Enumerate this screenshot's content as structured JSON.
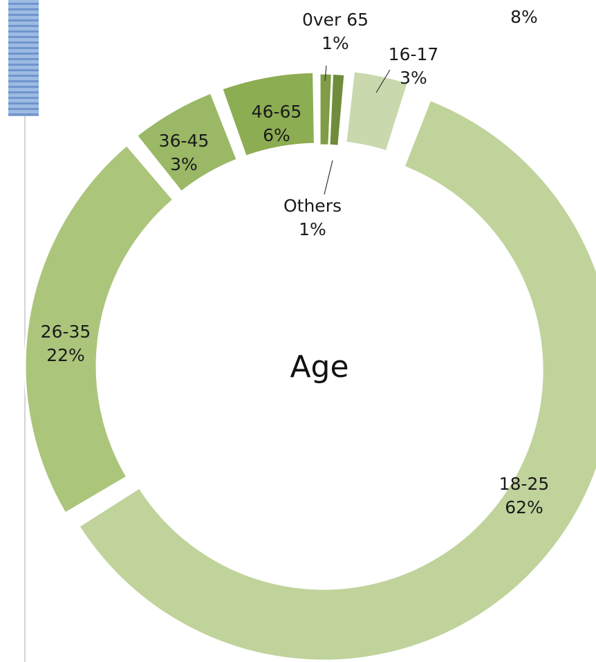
{
  "stray_label": "8%",
  "chart_data": {
    "type": "pie",
    "variant": "donut",
    "title": "Age",
    "legend": "none",
    "slices": [
      {
        "label": "16-17",
        "value": 3,
        "value_label": "3%",
        "color": "#c9d9ad"
      },
      {
        "label": "18-25",
        "value": 62,
        "value_label": "62%",
        "color": "#bfd39b"
      },
      {
        "label": "26-35",
        "value": 22,
        "value_label": "22%",
        "color": "#abc57b"
      },
      {
        "label": "36-45",
        "value": 3,
        "value_label": "3%",
        "color": "#9ab865"
      },
      {
        "label": "46-65",
        "value": 6,
        "value_label": "6%",
        "color": "#8dad52"
      },
      {
        "label": "0ver 65",
        "value": 1,
        "value_label": "1%",
        "color": "#7e9d46"
      },
      {
        "label": "Others",
        "value": 1,
        "value_label": "1%",
        "color": "#6e8c3a"
      }
    ]
  }
}
